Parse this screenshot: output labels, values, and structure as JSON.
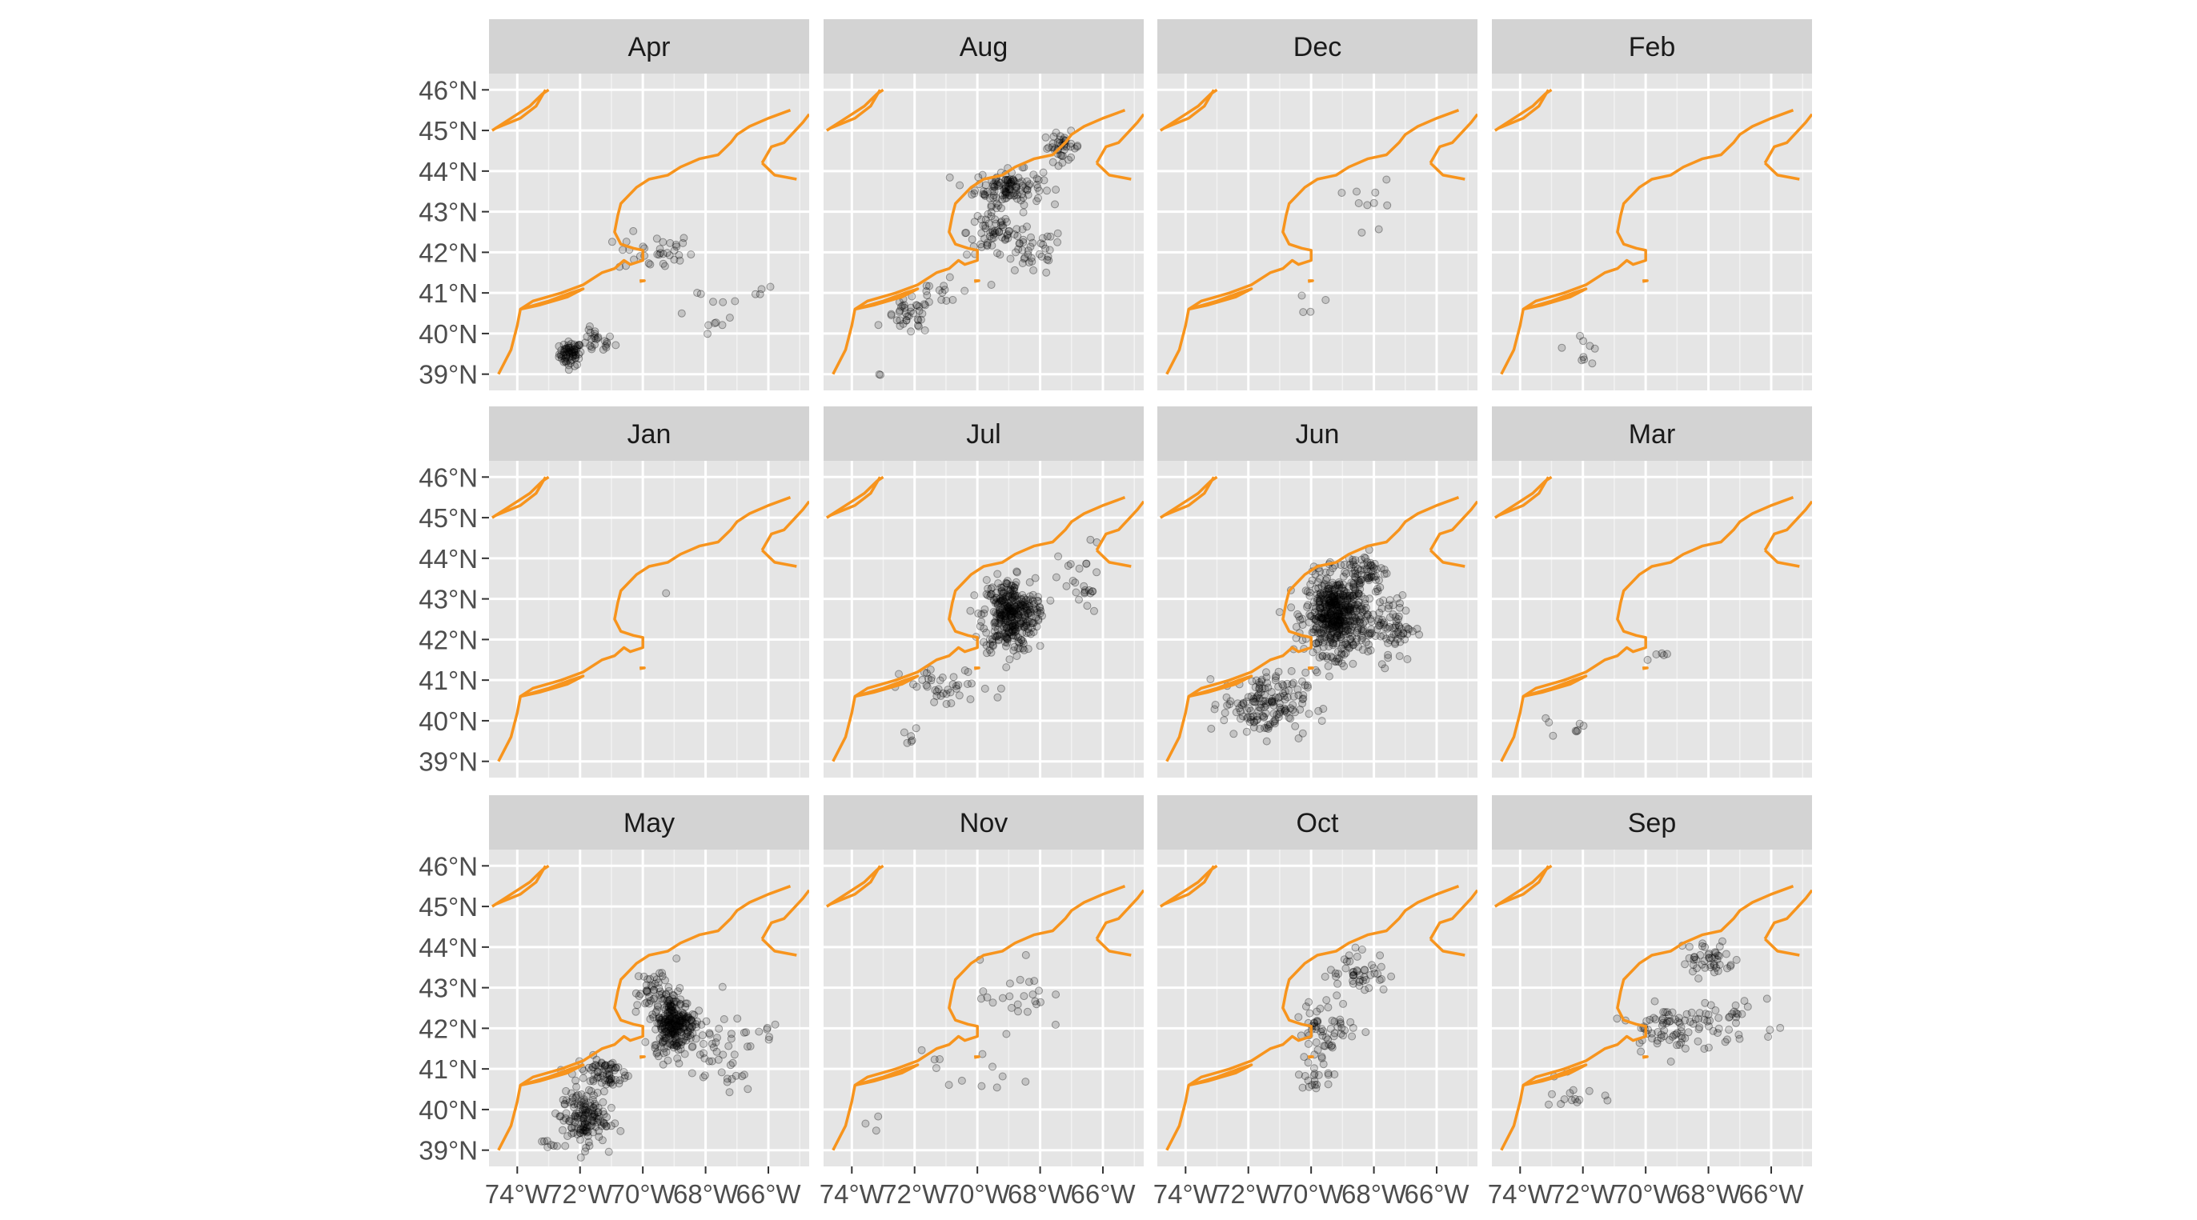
{
  "chart_data": {
    "type": "scatter",
    "layout": "facet-grid 3 rows x 4 columns, faceted by month",
    "panel_background": "#e5e5e5",
    "strip_background": "#d3d3d3",
    "coastline_color": "#f7941d",
    "point_color": "#000000",
    "point_alpha": 0.15,
    "grid": true,
    "x_axis": {
      "label": "",
      "ticks": [
        -74,
        -72,
        -70,
        -68,
        -66
      ],
      "tick_labels": [
        "74°W",
        "72°W",
        "70°W",
        "68°W",
        "66°W"
      ],
      "range": [
        -74.9,
        -64.7
      ]
    },
    "y_axis": {
      "label": "",
      "ticks": [
        39,
        40,
        41,
        42,
        43,
        44,
        45,
        46
      ],
      "tick_labels": [
        "39°N",
        "40°N",
        "41°N",
        "42°N",
        "43°N",
        "44°N",
        "45°N",
        "46°N"
      ],
      "range": [
        38.6,
        46.4
      ]
    },
    "coastline": [
      [
        [
          -74.6,
          39.0
        ],
        [
          -74.2,
          39.6
        ],
        [
          -74.0,
          40.2
        ],
        [
          -73.9,
          40.6
        ],
        [
          -73.5,
          40.8
        ],
        [
          -72.6,
          41.0
        ],
        [
          -71.9,
          41.2
        ],
        [
          -71.3,
          41.5
        ],
        [
          -70.9,
          41.6
        ],
        [
          -70.6,
          41.8
        ],
        [
          -70.4,
          41.7
        ],
        [
          -70.0,
          41.8
        ],
        [
          -70.0,
          42.05
        ],
        [
          -70.3,
          42.1
        ],
        [
          -70.7,
          42.2
        ],
        [
          -70.9,
          42.5
        ],
        [
          -70.8,
          42.9
        ],
        [
          -70.7,
          43.2
        ],
        [
          -70.2,
          43.6
        ],
        [
          -69.8,
          43.8
        ],
        [
          -69.2,
          43.9
        ],
        [
          -68.8,
          44.1
        ],
        [
          -68.2,
          44.3
        ],
        [
          -67.6,
          44.4
        ],
        [
          -67.2,
          44.7
        ],
        [
          -67.0,
          44.9
        ],
        [
          -66.6,
          45.1
        ],
        [
          -66.0,
          45.3
        ],
        [
          -65.3,
          45.5
        ]
      ],
      [
        [
          -73.9,
          40.6
        ],
        [
          -73.0,
          40.8
        ],
        [
          -72.3,
          41.0
        ],
        [
          -71.9,
          41.1
        ],
        [
          -72.4,
          40.9
        ],
        [
          -73.3,
          40.7
        ],
        [
          -73.9,
          40.6
        ]
      ],
      [
        [
          -70.1,
          41.3
        ],
        [
          -69.95,
          41.3
        ],
        [
          -70.1,
          41.28
        ]
      ],
      [
        [
          -66.2,
          44.2
        ],
        [
          -65.9,
          44.6
        ],
        [
          -65.5,
          44.7
        ],
        [
          -64.9,
          45.2
        ],
        [
          -64.7,
          45.4
        ]
      ],
      [
        [
          -66.2,
          44.2
        ],
        [
          -65.8,
          43.9
        ],
        [
          -65.1,
          43.8
        ]
      ],
      [
        [
          -74.8,
          45.0
        ],
        [
          -74.0,
          45.4
        ],
        [
          -73.6,
          45.6
        ],
        [
          -73.2,
          45.9
        ],
        [
          -73.0,
          46.0
        ]
      ],
      [
        [
          -74.7,
          45.05
        ],
        [
          -73.9,
          45.3
        ],
        [
          -73.4,
          45.6
        ],
        [
          -73.1,
          46.0
        ]
      ]
    ],
    "facets": [
      {
        "label": "Apr",
        "clusters": [
          {
            "center": [
              -72.3,
              39.5
            ],
            "spread": [
              0.3,
              0.25
            ],
            "count": 70
          },
          {
            "center": [
              -71.5,
              39.8
            ],
            "spread": [
              0.5,
              0.25
            ],
            "count": 25
          },
          {
            "center": [
              -69.6,
              42.0
            ],
            "spread": [
              1.0,
              0.4
            ],
            "count": 35
          },
          {
            "center": [
              -68.0,
              40.6
            ],
            "spread": [
              1.2,
              0.6
            ],
            "count": 12
          },
          {
            "center": [
              -66.2,
              41.1
            ],
            "spread": [
              0.4,
              0.2
            ],
            "count": 4
          }
        ]
      },
      {
        "label": "Aug",
        "clusters": [
          {
            "center": [
              -69.0,
              43.6
            ],
            "spread": [
              0.9,
              0.35
            ],
            "count": 120
          },
          {
            "center": [
              -67.3,
              44.6
            ],
            "spread": [
              0.5,
              0.3
            ],
            "count": 40
          },
          {
            "center": [
              -69.5,
              42.5
            ],
            "spread": [
              0.7,
              0.5
            ],
            "count": 60
          },
          {
            "center": [
              -68.3,
              42.0
            ],
            "spread": [
              0.9,
              0.5
            ],
            "count": 40
          },
          {
            "center": [
              -72.2,
              40.4
            ],
            "spread": [
              0.6,
              0.35
            ],
            "count": 35
          },
          {
            "center": [
              -71.0,
              41.0
            ],
            "spread": [
              1.0,
              0.5
            ],
            "count": 18
          },
          {
            "center": [
              -73.1,
              39.0
            ],
            "spread": [
              0.05,
              0.05
            ],
            "count": 2
          }
        ]
      },
      {
        "label": "Dec",
        "clusters": [
          {
            "center": [
              -68.0,
              43.1
            ],
            "spread": [
              0.6,
              0.6
            ],
            "count": 10
          },
          {
            "center": [
              -70.0,
              41.2
            ],
            "spread": [
              0.5,
              0.8
            ],
            "count": 4
          }
        ]
      },
      {
        "label": "Feb",
        "clusters": [
          {
            "center": [
              -72.0,
              39.7
            ],
            "spread": [
              0.5,
              0.4
            ],
            "count": 9
          }
        ]
      },
      {
        "label": "Jan",
        "clusters": [
          {
            "center": [
              -69.3,
              43.1
            ],
            "spread": [
              0.05,
              0.05
            ],
            "count": 1
          }
        ]
      },
      {
        "label": "Jul",
        "clusters": [
          {
            "center": [
              -69.0,
              42.6
            ],
            "spread": [
              0.7,
              0.75
            ],
            "count": 320
          },
          {
            "center": [
              -68.4,
              42.7
            ],
            "spread": [
              0.4,
              0.3
            ],
            "count": 30
          },
          {
            "center": [
              -66.7,
              43.3
            ],
            "spread": [
              0.6,
              0.9
            ],
            "count": 25
          },
          {
            "center": [
              -71.0,
              40.8
            ],
            "spread": [
              1.2,
              0.4
            ],
            "count": 40
          },
          {
            "center": [
              -72.0,
              39.5
            ],
            "spread": [
              0.9,
              0.5
            ],
            "count": 6
          }
        ]
      },
      {
        "label": "Jun",
        "clusters": [
          {
            "center": [
              -69.2,
              42.6
            ],
            "spread": [
              0.8,
              0.8
            ],
            "count": 520
          },
          {
            "center": [
              -71.5,
              40.4
            ],
            "spread": [
              1.1,
              0.65
            ],
            "count": 160
          },
          {
            "center": [
              -67.5,
              42.3
            ],
            "spread": [
              0.7,
              0.7
            ],
            "count": 80
          },
          {
            "center": [
              -68.3,
              43.7
            ],
            "spread": [
              0.6,
              0.4
            ],
            "count": 60
          }
        ]
      },
      {
        "label": "Mar",
        "clusters": [
          {
            "center": [
              -69.6,
              41.7
            ],
            "spread": [
              0.5,
              0.2
            ],
            "count": 5
          },
          {
            "center": [
              -72.1,
              39.8
            ],
            "spread": [
              0.3,
              0.2
            ],
            "count": 5
          },
          {
            "center": [
              -73.1,
              39.9
            ],
            "spread": [
              0.3,
              0.4
            ],
            "count": 3
          }
        ]
      },
      {
        "label": "May",
        "clusters": [
          {
            "center": [
              -69.0,
              42.1
            ],
            "spread": [
              0.55,
              0.55
            ],
            "count": 260
          },
          {
            "center": [
              -69.5,
              42.9
            ],
            "spread": [
              0.6,
              0.5
            ],
            "count": 50
          },
          {
            "center": [
              -71.9,
              39.8
            ],
            "spread": [
              0.6,
              0.55
            ],
            "count": 150
          },
          {
            "center": [
              -71.3,
              40.9
            ],
            "spread": [
              0.7,
              0.35
            ],
            "count": 70
          },
          {
            "center": [
              -67.7,
              41.3
            ],
            "spread": [
              1.1,
              0.8
            ],
            "count": 45
          },
          {
            "center": [
              -66.0,
              41.9
            ],
            "spread": [
              0.3,
              0.3
            ],
            "count": 6
          },
          {
            "center": [
              -72.9,
              39.2
            ],
            "spread": [
              0.3,
              0.2
            ],
            "count": 8
          }
        ]
      },
      {
        "label": "Nov",
        "clusters": [
          {
            "center": [
              -68.8,
              42.8
            ],
            "spread": [
              0.9,
              0.7
            ],
            "count": 25
          },
          {
            "center": [
              -70.0,
              40.9
            ],
            "spread": [
              1.5,
              0.5
            ],
            "count": 12
          },
          {
            "center": [
              -73.2,
              39.6
            ],
            "spread": [
              0.4,
              0.3
            ],
            "count": 3
          }
        ]
      },
      {
        "label": "Oct",
        "clusters": [
          {
            "center": [
              -68.5,
              43.4
            ],
            "spread": [
              0.8,
              0.45
            ],
            "count": 45
          },
          {
            "center": [
              -69.5,
              42.0
            ],
            "spread": [
              0.8,
              0.6
            ],
            "count": 60
          },
          {
            "center": [
              -69.7,
              40.9
            ],
            "spread": [
              0.6,
              0.35
            ],
            "count": 20
          }
        ]
      },
      {
        "label": "Sep",
        "clusters": [
          {
            "center": [
              -68.0,
              43.7
            ],
            "spread": [
              0.7,
              0.4
            ],
            "count": 45
          },
          {
            "center": [
              -69.5,
              42.0
            ],
            "spread": [
              0.8,
              0.45
            ],
            "count": 60
          },
          {
            "center": [
              -68.0,
              42.2
            ],
            "spread": [
              1.0,
              0.6
            ],
            "count": 35
          },
          {
            "center": [
              -72.3,
              40.4
            ],
            "spread": [
              0.7,
              0.5
            ],
            "count": 15
          },
          {
            "center": [
              -66.5,
              42.1
            ],
            "spread": [
              0.8,
              0.6
            ],
            "count": 10
          }
        ]
      }
    ]
  }
}
